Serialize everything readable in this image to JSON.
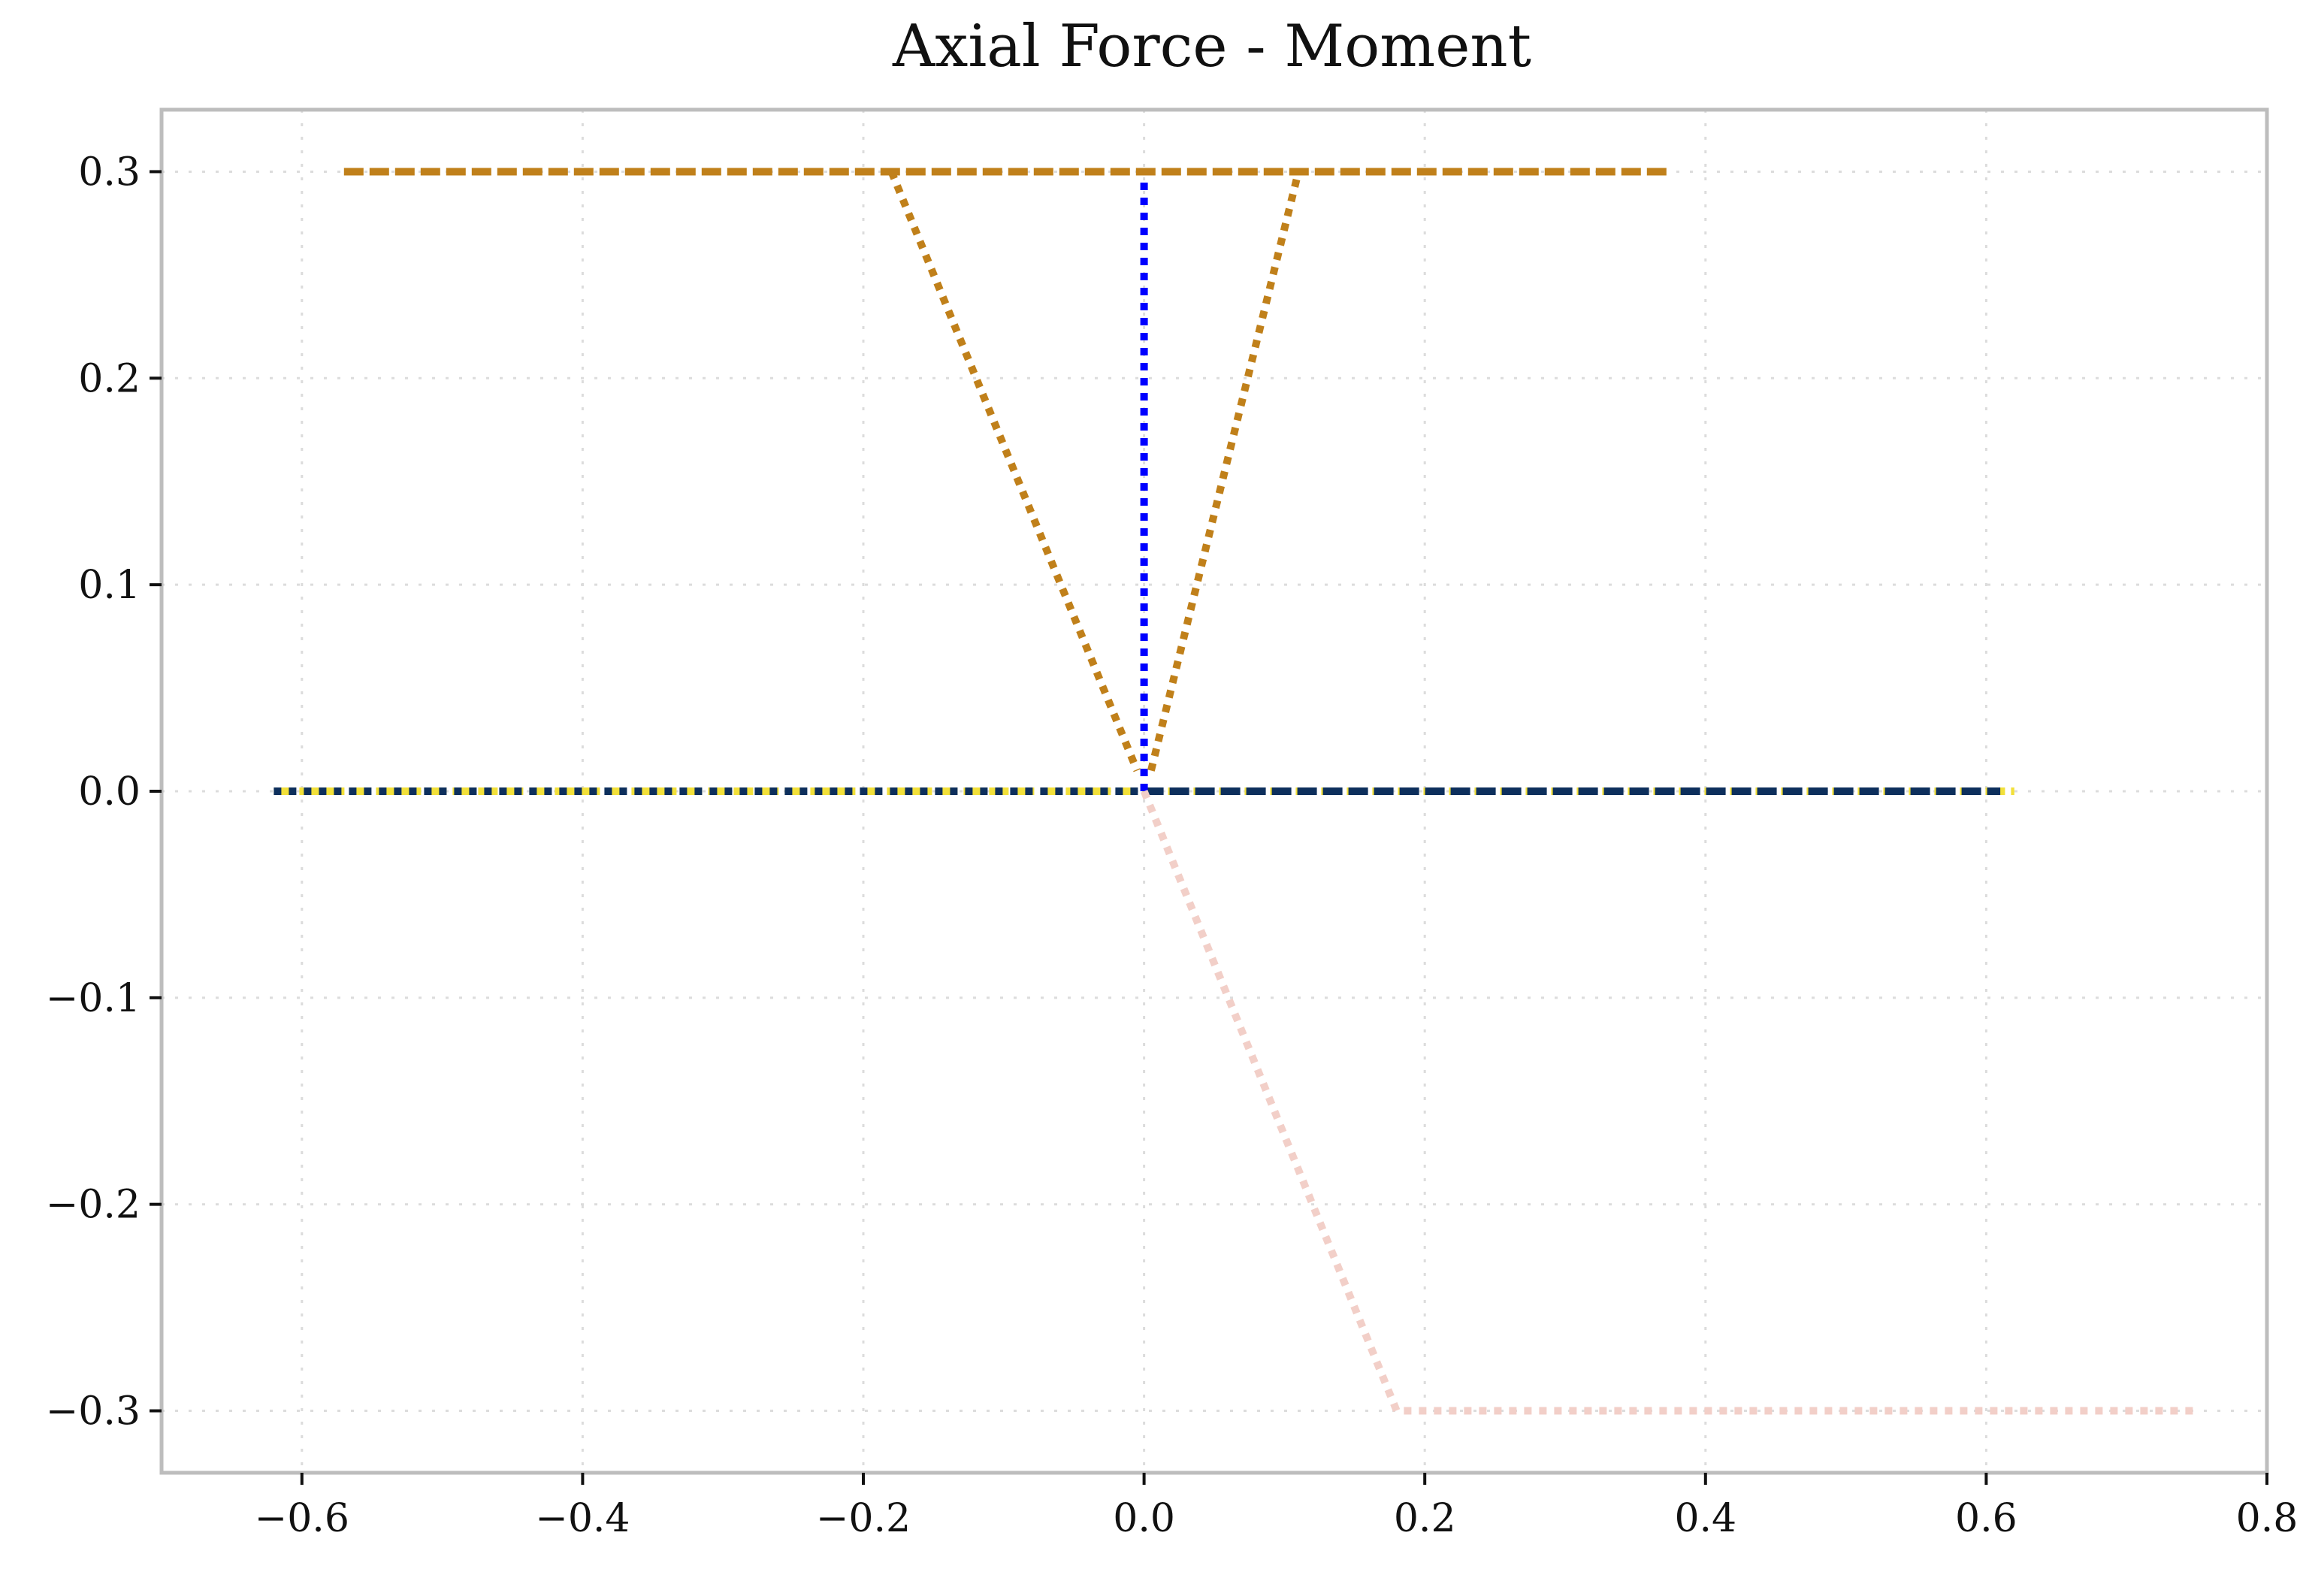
{
  "chart_data": {
    "type": "line",
    "title": "Axial Force - Moment",
    "xlabel": "",
    "ylabel": "",
    "xlim": [
      -0.7,
      0.8
    ],
    "ylim": [
      -0.33,
      0.33
    ],
    "grid": true,
    "x_ticks": [
      -0.6,
      -0.4,
      -0.2,
      0.0,
      0.2,
      0.4,
      0.6,
      0.8
    ],
    "y_ticks": [
      -0.3,
      -0.2,
      -0.1,
      0.0,
      0.1,
      0.2,
      0.3
    ],
    "x_tick_labels": [
      "−0.6",
      "−0.4",
      "−0.2",
      "0.0",
      "0.2",
      "0.4",
      "0.6",
      "0.8"
    ],
    "y_tick_labels": [
      "−0.3",
      "−0.2",
      "−0.1",
      "0.0",
      "0.1",
      "0.2",
      "0.3"
    ],
    "series": [
      {
        "color": "#f2e03a",
        "style": "dashed",
        "points": [
          [
            -0.62,
            0.0
          ],
          [
            0.62,
            0.0
          ]
        ]
      },
      {
        "color": "#0d2f5c",
        "style": "dotted",
        "points": [
          [
            -0.62,
            0.0
          ],
          [
            0.0,
            0.0
          ]
        ]
      },
      {
        "color": "#0d2f5c",
        "style": "dashed",
        "points": [
          [
            0.0,
            0.0
          ],
          [
            0.61,
            0.0
          ]
        ]
      },
      {
        "color": "#0000ff",
        "style": "dotted",
        "points": [
          [
            0.0,
            0.0
          ],
          [
            0.0,
            0.3
          ]
        ]
      },
      {
        "color": "#c0801a",
        "style": "dashed",
        "points": [
          [
            -0.57,
            0.3
          ],
          [
            0.375,
            0.3
          ]
        ]
      },
      {
        "color": "#c0801a",
        "style": "dotted",
        "points": [
          [
            -0.18,
            0.3
          ],
          [
            -0.005,
            0.01
          ]
        ]
      },
      {
        "color": "#c0801a",
        "style": "dotted",
        "points": [
          [
            0.005,
            0.01
          ],
          [
            0.11,
            0.3
          ]
        ]
      },
      {
        "color": "#f2cfc8",
        "style": "dotted",
        "points": [
          [
            0.0,
            0.0
          ],
          [
            0.18,
            -0.3
          ],
          [
            0.75,
            -0.3
          ]
        ]
      }
    ]
  }
}
